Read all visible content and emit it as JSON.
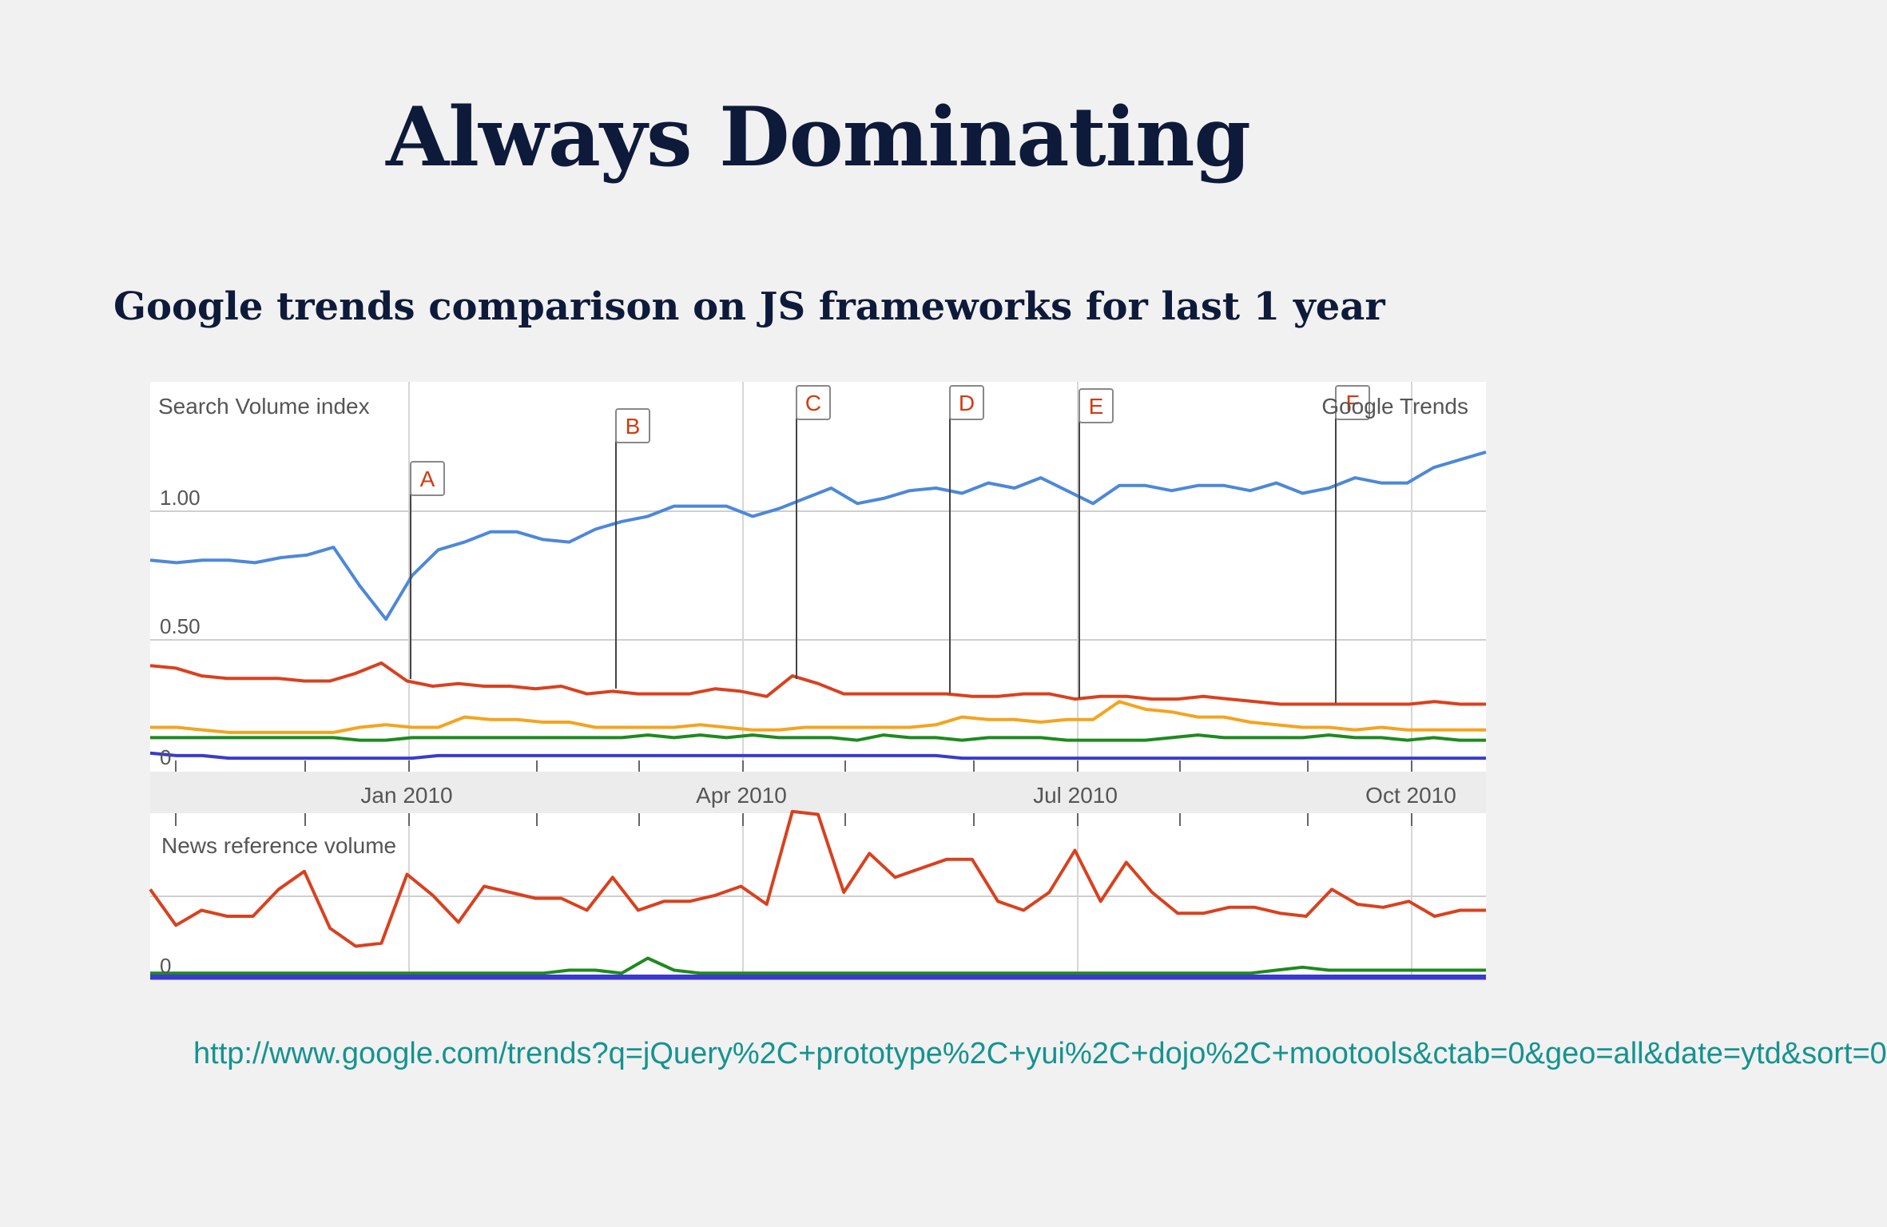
{
  "slide": {
    "title": "Always Dominating",
    "subtitle": "Google trends comparison on JS frameworks for last 1 year",
    "url": "http://www.google.com/trends?q=jQuery%2C+prototype%2C+yui%2C+dojo%2C+mootools&ctab=0&geo=all&date=ytd&sort=0"
  },
  "chart_data": [
    {
      "type": "line",
      "title": "Search Volume index",
      "watermark": "Google Trends",
      "x_ticks": [
        "Jan 2010",
        "Apr 2010",
        "Jul 2010",
        "Oct 2010"
      ],
      "y_ticks": [
        "1.00",
        "0.50",
        "0"
      ],
      "ylim": [
        0,
        1.5
      ],
      "grid": true,
      "markers": [
        "A",
        "B",
        "C",
        "D",
        "E",
        "F"
      ],
      "series": [
        {
          "color": "#4d88d9",
          "values": [
            0.81,
            0.8,
            0.81,
            0.81,
            0.8,
            0.82,
            0.83,
            0.86,
            0.71,
            0.58,
            0.75,
            0.85,
            0.88,
            0.92,
            0.92,
            0.89,
            0.88,
            0.93,
            0.96,
            0.98,
            1.02,
            1.02,
            1.02,
            0.98,
            1.01,
            1.05,
            1.09,
            1.03,
            1.05,
            1.08,
            1.09,
            1.07,
            1.11,
            1.09,
            1.13,
            1.08,
            1.03,
            1.1,
            1.1,
            1.08,
            1.1,
            1.1,
            1.08,
            1.11,
            1.07,
            1.09,
            1.13,
            1.11,
            1.11,
            1.17,
            1.2,
            1.23
          ]
        },
        {
          "color": "#d9411e",
          "values": [
            0.4,
            0.39,
            0.36,
            0.35,
            0.35,
            0.35,
            0.34,
            0.34,
            0.37,
            0.41,
            0.34,
            0.32,
            0.33,
            0.32,
            0.32,
            0.31,
            0.32,
            0.29,
            0.3,
            0.29,
            0.29,
            0.29,
            0.31,
            0.3,
            0.28,
            0.36,
            0.33,
            0.29,
            0.29,
            0.29,
            0.29,
            0.29,
            0.28,
            0.28,
            0.29,
            0.29,
            0.27,
            0.28,
            0.28,
            0.27,
            0.27,
            0.28,
            0.27,
            0.26,
            0.25,
            0.25,
            0.25,
            0.25,
            0.25,
            0.25,
            0.26,
            0.25,
            0.25
          ]
        },
        {
          "color": "#f4a41f",
          "values": [
            0.16,
            0.16,
            0.15,
            0.14,
            0.14,
            0.14,
            0.14,
            0.14,
            0.16,
            0.17,
            0.16,
            0.16,
            0.2,
            0.19,
            0.19,
            0.18,
            0.18,
            0.16,
            0.16,
            0.16,
            0.16,
            0.17,
            0.16,
            0.15,
            0.15,
            0.16,
            0.16,
            0.16,
            0.16,
            0.16,
            0.17,
            0.2,
            0.19,
            0.19,
            0.18,
            0.19,
            0.19,
            0.26,
            0.23,
            0.22,
            0.2,
            0.2,
            0.18,
            0.17,
            0.16,
            0.16,
            0.15,
            0.16,
            0.15,
            0.15,
            0.15,
            0.15
          ]
        },
        {
          "color": "#1e8a1e",
          "values": [
            0.12,
            0.12,
            0.12,
            0.12,
            0.12,
            0.12,
            0.12,
            0.12,
            0.11,
            0.11,
            0.12,
            0.12,
            0.12,
            0.12,
            0.12,
            0.12,
            0.12,
            0.12,
            0.12,
            0.13,
            0.12,
            0.13,
            0.12,
            0.13,
            0.12,
            0.12,
            0.12,
            0.11,
            0.13,
            0.12,
            0.12,
            0.11,
            0.12,
            0.12,
            0.12,
            0.11,
            0.11,
            0.11,
            0.11,
            0.12,
            0.13,
            0.12,
            0.12,
            0.12,
            0.12,
            0.13,
            0.12,
            0.12,
            0.11,
            0.12,
            0.11,
            0.11
          ]
        },
        {
          "color": "#3a3acf",
          "values": [
            0.06,
            0.05,
            0.05,
            0.04,
            0.04,
            0.04,
            0.04,
            0.04,
            0.04,
            0.04,
            0.04,
            0.05,
            0.05,
            0.05,
            0.05,
            0.05,
            0.05,
            0.05,
            0.05,
            0.05,
            0.05,
            0.05,
            0.05,
            0.05,
            0.05,
            0.05,
            0.05,
            0.05,
            0.05,
            0.05,
            0.05,
            0.04,
            0.04,
            0.04,
            0.04,
            0.04,
            0.04,
            0.04,
            0.04,
            0.04,
            0.04,
            0.04,
            0.04,
            0.04,
            0.04,
            0.04,
            0.04,
            0.04,
            0.04,
            0.04,
            0.04,
            0.04
          ]
        }
      ]
    },
    {
      "type": "line",
      "title": "News reference volume",
      "y_ticks": [
        "0"
      ],
      "grid": true,
      "series": [
        {
          "color": "#d9411e",
          "values": [
            0.29,
            0.17,
            0.22,
            0.2,
            0.2,
            0.29,
            0.35,
            0.16,
            0.1,
            0.11,
            0.34,
            0.27,
            0.18,
            0.3,
            0.28,
            0.26,
            0.26,
            0.22,
            0.33,
            0.22,
            0.25,
            0.25,
            0.27,
            0.3,
            0.24,
            0.55,
            0.54,
            0.28,
            0.41,
            0.33,
            0.36,
            0.39,
            0.39,
            0.25,
            0.22,
            0.28,
            0.42,
            0.25,
            0.38,
            0.28,
            0.21,
            0.21,
            0.23,
            0.23,
            0.21,
            0.2,
            0.29,
            0.24,
            0.23,
            0.25,
            0.2,
            0.22,
            0.22
          ]
        },
        {
          "color": "#1e8a1e",
          "values": [
            0.01,
            0.01,
            0.01,
            0.01,
            0.01,
            0.01,
            0.01,
            0.01,
            0.01,
            0.01,
            0.01,
            0.01,
            0.01,
            0.01,
            0.01,
            0.01,
            0.02,
            0.02,
            0.01,
            0.06,
            0.02,
            0.01,
            0.01,
            0.01,
            0.01,
            0.01,
            0.01,
            0.01,
            0.01,
            0.01,
            0.01,
            0.01,
            0.01,
            0.01,
            0.01,
            0.01,
            0.01,
            0.01,
            0.01,
            0.01,
            0.01,
            0.01,
            0.01,
            0.02,
            0.03,
            0.02,
            0.02,
            0.02,
            0.02,
            0.02,
            0.02,
            0.02
          ]
        },
        {
          "color": "#3a3acf",
          "values": [
            0.0,
            0.0,
            0.0,
            0.0,
            0.0,
            0.0,
            0.0,
            0.0,
            0.0,
            0.0,
            0.0,
            0.0,
            0.0,
            0.0,
            0.0,
            0.0,
            0.0,
            0.0,
            0.0,
            0.0,
            0.0,
            0.0,
            0.0,
            0.0,
            0.0,
            0.0,
            0.0,
            0.0,
            0.0,
            0.0,
            0.0,
            0.0,
            0.0,
            0.0,
            0.0,
            0.0,
            0.0,
            0.0,
            0.0,
            0.0,
            0.0,
            0.0,
            0.0,
            0.0,
            0.0,
            0.0,
            0.0,
            0.0,
            0.0,
            0.0,
            0.0,
            0.0
          ]
        }
      ]
    }
  ]
}
